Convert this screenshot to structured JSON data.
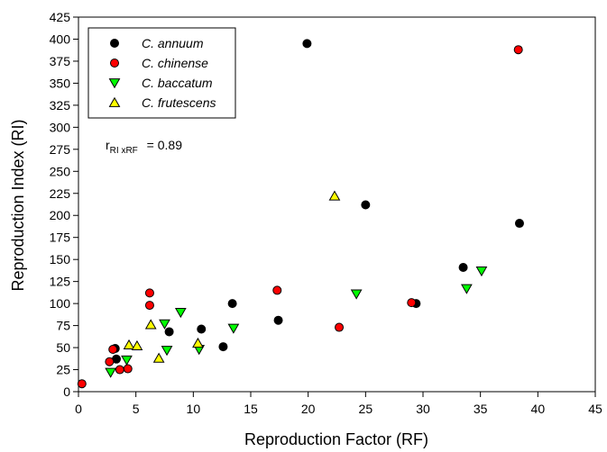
{
  "chart_data": {
    "type": "scatter",
    "title": "",
    "xlabel": "Reproduction Factor (RF)",
    "ylabel": "Reproduction Index (RI)",
    "xlim": [
      0,
      45
    ],
    "ylim": [
      0,
      425
    ],
    "xticks": [
      0,
      5,
      10,
      15,
      20,
      25,
      30,
      35,
      40,
      45
    ],
    "yticks": [
      0,
      25,
      50,
      75,
      100,
      125,
      150,
      175,
      200,
      225,
      250,
      275,
      300,
      325,
      350,
      375,
      400,
      425
    ],
    "grid": false,
    "legend_position": "top-left",
    "annotation": {
      "prefix": "r",
      "subscript": "RI xRF",
      "suffix": " = 0.89"
    },
    "series": [
      {
        "name": "C. annuum",
        "marker": "circle",
        "color": "#000000",
        "points": [
          [
            3.3,
            37
          ],
          [
            3.2,
            49
          ],
          [
            7.9,
            68
          ],
          [
            10.7,
            71
          ],
          [
            12.6,
            51
          ],
          [
            13.4,
            100
          ],
          [
            17.4,
            81
          ],
          [
            19.9,
            395
          ],
          [
            25.0,
            212
          ],
          [
            29.4,
            100
          ],
          [
            33.5,
            141
          ],
          [
            38.4,
            191
          ]
        ]
      },
      {
        "name": "C. chinense",
        "marker": "circle",
        "color": "#ff0000",
        "points": [
          [
            0.3,
            9
          ],
          [
            2.7,
            34
          ],
          [
            3.0,
            48
          ],
          [
            3.6,
            25
          ],
          [
            4.3,
            26
          ],
          [
            6.2,
            112
          ],
          [
            6.2,
            98
          ],
          [
            17.3,
            115
          ],
          [
            22.7,
            73
          ],
          [
            29.0,
            101
          ],
          [
            38.3,
            388
          ]
        ]
      },
      {
        "name": "C. baccatum",
        "marker": "triangle-down",
        "color": "#00ff00",
        "points": [
          [
            2.8,
            22
          ],
          [
            4.2,
            36
          ],
          [
            7.5,
            77
          ],
          [
            7.7,
            47
          ],
          [
            8.9,
            90
          ],
          [
            10.5,
            48
          ],
          [
            13.5,
            72
          ],
          [
            24.2,
            111
          ],
          [
            33.8,
            117
          ],
          [
            35.1,
            137
          ]
        ]
      },
      {
        "name": "C. frutescens",
        "marker": "triangle-up",
        "color": "#ffff00",
        "points": [
          [
            4.4,
            53
          ],
          [
            5.1,
            52
          ],
          [
            6.3,
            76
          ],
          [
            7.0,
            38
          ],
          [
            10.4,
            55
          ],
          [
            22.3,
            222
          ]
        ]
      }
    ]
  }
}
